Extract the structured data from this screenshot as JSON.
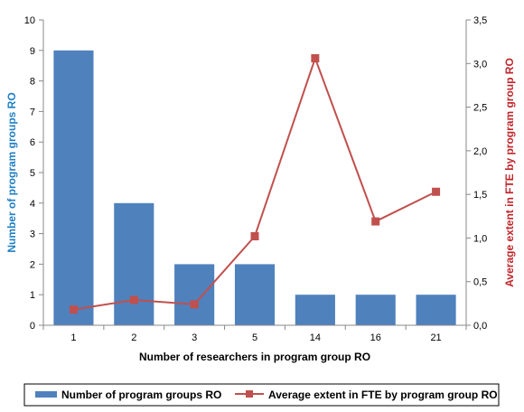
{
  "chart_data": {
    "type": "bar",
    "categories": [
      "1",
      "2",
      "3",
      "5",
      "14",
      "16",
      "21"
    ],
    "series": [
      {
        "name": "Number of program groups RO",
        "type": "bar",
        "axis": "left",
        "color": "#4f81bd",
        "values": [
          9,
          4,
          2,
          2,
          1,
          1,
          1
        ]
      },
      {
        "name": "Average extent in FTE by program group RO",
        "type": "line",
        "axis": "right",
        "color": "#c0504d",
        "values": [
          0.18,
          0.29,
          0.24,
          1.02,
          3.06,
          1.19,
          1.53
        ]
      }
    ],
    "xlabel": "Number of researchers in program group RO",
    "ylabel": "Number of program groups RO",
    "y2label": "Average extent in FTE by program group RO",
    "ylim": [
      0,
      10
    ],
    "y2lim": [
      0,
      3.5
    ],
    "yticks": [
      "0",
      "1",
      "2",
      "3",
      "4",
      "5",
      "6",
      "7",
      "8",
      "9",
      "10"
    ],
    "y2ticks": [
      "0,0",
      "0,5",
      "1,0",
      "1,5",
      "2,0",
      "2,5",
      "3,0",
      "3,5"
    ],
    "ylabel_color": "#1f7fc4",
    "y2label_color": "#c0262b",
    "grid": false,
    "legend_position": "bottom"
  }
}
